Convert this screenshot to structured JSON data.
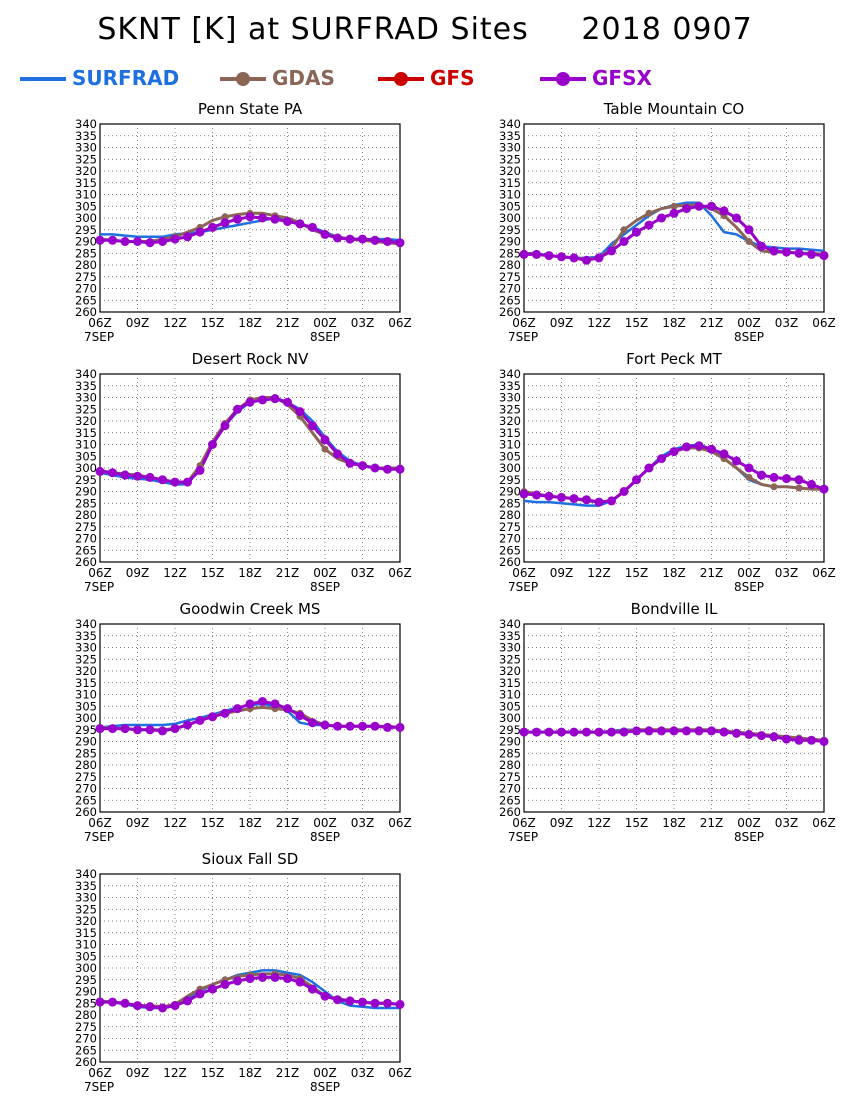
{
  "title": "SKNT [K] at SURFRAD Sites     2018 0907",
  "legend": [
    {
      "name": "SURFRAD",
      "color": "#1e6fe0",
      "marker": "none"
    },
    {
      "name": "GDAS",
      "color": "#8b6556",
      "marker": "circle"
    },
    {
      "name": "GFS",
      "color": "#cc0000",
      "marker": "circle"
    },
    {
      "name": "GFSX",
      "color": "#9900cc",
      "marker": "circle"
    }
  ],
  "chart_data": [
    {
      "type": "line",
      "title": "Penn State PA",
      "x": [
        0,
        1,
        2,
        3,
        4,
        5,
        6,
        7,
        8,
        9,
        10,
        11,
        12,
        13,
        14,
        15,
        16,
        17,
        18,
        19,
        20,
        21,
        22,
        23,
        24
      ],
      "xtick_labels": [
        "06Z",
        "09Z",
        "12Z",
        "15Z",
        "18Z",
        "21Z",
        "00Z",
        "03Z",
        "06Z"
      ],
      "xdate_labels": [
        "7SEP",
        "8SEP"
      ],
      "ylim": [
        260,
        340
      ],
      "yticks": [
        260,
        265,
        270,
        275,
        280,
        285,
        290,
        295,
        300,
        305,
        310,
        315,
        320,
        325,
        330,
        335,
        340
      ],
      "series": [
        {
          "name": "SURFRAD",
          "values": [
            293,
            293,
            292.5,
            292,
            292,
            292,
            293,
            293.5,
            294,
            295,
            296,
            297,
            298,
            299,
            300,
            299,
            297,
            296,
            294,
            292,
            291,
            291,
            291,
            291,
            290.5
          ]
        },
        {
          "name": "GDAS",
          "values": [
            291,
            290.5,
            290,
            290,
            290,
            291,
            292,
            294,
            296,
            299,
            300.5,
            301.5,
            302,
            302,
            301,
            300,
            298,
            295,
            293,
            292,
            291,
            290.5,
            290,
            289.5,
            289
          ]
        },
        {
          "name": "GFSX",
          "values": [
            290.5,
            290.5,
            290,
            290,
            289.5,
            290,
            291,
            292,
            294,
            296,
            298,
            299.5,
            300.5,
            300,
            299.5,
            298.5,
            297.5,
            296,
            293,
            291.5,
            291,
            291,
            290.5,
            290,
            289.5
          ]
        }
      ]
    },
    {
      "type": "line",
      "title": "Table Mountain CO",
      "x": [
        0,
        1,
        2,
        3,
        4,
        5,
        6,
        7,
        8,
        9,
        10,
        11,
        12,
        13,
        14,
        15,
        16,
        17,
        18,
        19,
        20,
        21,
        22,
        23,
        24
      ],
      "xtick_labels": [
        "06Z",
        "09Z",
        "12Z",
        "15Z",
        "18Z",
        "21Z",
        "00Z",
        "03Z",
        "06Z"
      ],
      "xdate_labels": [
        "7SEP",
        "8SEP"
      ],
      "ylim": [
        260,
        340
      ],
      "yticks": [
        260,
        265,
        270,
        275,
        280,
        285,
        290,
        295,
        300,
        305,
        310,
        315,
        320,
        325,
        330,
        335,
        340
      ],
      "series": [
        {
          "name": "SURFRAD",
          "values": [
            285,
            285,
            284,
            283.5,
            283,
            283,
            283.5,
            289,
            293,
            297,
            301,
            304,
            305.5,
            306.5,
            306.5,
            301,
            294,
            293,
            290,
            288,
            287.5,
            287,
            287,
            286.5,
            286
          ]
        },
        {
          "name": "GDAS",
          "values": [
            285,
            284.5,
            284,
            283.5,
            283,
            282.5,
            283,
            287,
            295,
            299,
            302,
            304,
            305,
            305.5,
            305.5,
            304,
            301,
            296,
            290,
            286,
            285.5,
            285.5,
            285,
            285,
            284.5
          ]
        },
        {
          "name": "GFSX",
          "values": [
            284.5,
            284.5,
            284,
            283.5,
            283,
            282,
            283,
            286,
            290,
            294,
            297,
            300,
            302,
            304,
            305,
            305,
            303,
            300,
            295,
            288,
            286,
            285.5,
            285,
            284.5,
            284
          ]
        }
      ]
    },
    {
      "type": "line",
      "title": "Desert Rock NV",
      "x": [
        0,
        1,
        2,
        3,
        4,
        5,
        6,
        7,
        8,
        9,
        10,
        11,
        12,
        13,
        14,
        15,
        16,
        17,
        18,
        19,
        20,
        21,
        22,
        23,
        24
      ],
      "xtick_labels": [
        "06Z",
        "09Z",
        "12Z",
        "15Z",
        "18Z",
        "21Z",
        "00Z",
        "03Z",
        "06Z"
      ],
      "xdate_labels": [
        "7SEP",
        "8SEP"
      ],
      "ylim": [
        260,
        340
      ],
      "yticks": [
        260,
        265,
        270,
        275,
        280,
        285,
        290,
        295,
        300,
        305,
        310,
        315,
        320,
        325,
        330,
        335,
        340
      ],
      "series": [
        {
          "name": "SURFRAD",
          "values": [
            298,
            297,
            296,
            295.5,
            295,
            294,
            293,
            293,
            300,
            310,
            318,
            324,
            328,
            330,
            330,
            328,
            325,
            320,
            313,
            307,
            303,
            301,
            300,
            300,
            300
          ]
        },
        {
          "name": "GDAS",
          "values": [
            299,
            298,
            297.5,
            297,
            296,
            295,
            294,
            294,
            301,
            311,
            319,
            325,
            329,
            330,
            330,
            327,
            322,
            315,
            308,
            304,
            302,
            301,
            300,
            300,
            300
          ]
        },
        {
          "name": "GFSX",
          "values": [
            298.5,
            298,
            297,
            296.5,
            296,
            295,
            294,
            294,
            299,
            310,
            318,
            325,
            328,
            329,
            329.5,
            328,
            324,
            318,
            312,
            306,
            302,
            301,
            300,
            299.5,
            299.5
          ]
        }
      ]
    },
    {
      "type": "line",
      "title": "Fort Peck MT",
      "x": [
        0,
        1,
        2,
        3,
        4,
        5,
        6,
        7,
        8,
        9,
        10,
        11,
        12,
        13,
        14,
        15,
        16,
        17,
        18,
        19,
        20,
        21,
        22,
        23,
        24
      ],
      "xtick_labels": [
        "06Z",
        "09Z",
        "12Z",
        "15Z",
        "18Z",
        "21Z",
        "00Z",
        "03Z",
        "06Z"
      ],
      "xdate_labels": [
        "7SEP",
        "8SEP"
      ],
      "ylim": [
        260,
        340
      ],
      "yticks": [
        260,
        265,
        270,
        275,
        280,
        285,
        290,
        295,
        300,
        305,
        310,
        315,
        320,
        325,
        330,
        335,
        340
      ],
      "series": [
        {
          "name": "SURFRAD",
          "values": [
            286,
            285.5,
            285.5,
            285,
            284.5,
            284,
            284,
            286,
            290,
            295,
            300,
            305,
            308,
            309.5,
            310,
            308,
            304,
            300,
            295,
            293,
            292,
            292,
            291.5,
            291,
            291
          ]
        },
        {
          "name": "GDAS",
          "values": [
            290,
            289,
            288,
            287.5,
            287,
            286,
            285.5,
            286,
            290,
            295,
            300,
            304,
            307,
            308.5,
            308.5,
            307,
            304,
            300,
            296,
            293,
            292,
            292,
            291.5,
            291,
            291
          ]
        },
        {
          "name": "GFSX",
          "values": [
            289,
            288.5,
            288,
            287.5,
            287,
            286.5,
            285.5,
            286,
            290,
            295,
            300,
            304,
            307,
            309,
            309.5,
            308,
            306,
            303,
            300,
            297,
            296,
            295.5,
            295,
            293,
            291
          ]
        }
      ]
    },
    {
      "type": "line",
      "title": "Goodwin Creek MS",
      "x": [
        0,
        1,
        2,
        3,
        4,
        5,
        6,
        7,
        8,
        9,
        10,
        11,
        12,
        13,
        14,
        15,
        16,
        17,
        18,
        19,
        20,
        21,
        22,
        23,
        24
      ],
      "xtick_labels": [
        "06Z",
        "09Z",
        "12Z",
        "15Z",
        "18Z",
        "21Z",
        "00Z",
        "03Z",
        "06Z"
      ],
      "xdate_labels": [
        "7SEP",
        "8SEP"
      ],
      "ylim": [
        260,
        340
      ],
      "yticks": [
        260,
        265,
        270,
        275,
        280,
        285,
        290,
        295,
        300,
        305,
        310,
        315,
        320,
        325,
        330,
        335,
        340
      ],
      "series": [
        {
          "name": "SURFRAD",
          "values": [
            296,
            296.5,
            297,
            297,
            297,
            297,
            297.5,
            299,
            300,
            301.5,
            303,
            304.5,
            305.5,
            306,
            305,
            303,
            298,
            297,
            297,
            296.5,
            296.5,
            296.5,
            296.5,
            296.5,
            296
          ]
        },
        {
          "name": "GDAS",
          "values": [
            296,
            295.5,
            295.5,
            295,
            295,
            295,
            295.5,
            297,
            299,
            301,
            302,
            303,
            304,
            304.5,
            304,
            303.5,
            302,
            299,
            297,
            296.5,
            296.5,
            296.5,
            296.5,
            296.5,
            296
          ]
        },
        {
          "name": "GFSX",
          "values": [
            295.5,
            295.5,
            295.5,
            295,
            295,
            294.5,
            295.5,
            297,
            299,
            300.5,
            302,
            304,
            306,
            307,
            306,
            304,
            301,
            298,
            297,
            296.5,
            296.5,
            296.5,
            296.5,
            296,
            296
          ]
        }
      ]
    },
    {
      "type": "line",
      "title": "Bondville IL",
      "x": [
        0,
        1,
        2,
        3,
        4,
        5,
        6,
        7,
        8,
        9,
        10,
        11,
        12,
        13,
        14,
        15,
        16,
        17,
        18,
        19,
        20,
        21,
        22,
        23,
        24
      ],
      "xtick_labels": [
        "06Z",
        "09Z",
        "12Z",
        "15Z",
        "18Z",
        "21Z",
        "00Z",
        "03Z",
        "06Z"
      ],
      "xdate_labels": [
        "7SEP",
        "8SEP"
      ],
      "ylim": [
        260,
        340
      ],
      "yticks": [
        260,
        265,
        270,
        275,
        280,
        285,
        290,
        295,
        300,
        305,
        310,
        315,
        320,
        325,
        330,
        335,
        340
      ],
      "series": [
        {
          "name": "SURFRAD",
          "values": [
            294,
            294,
            294,
            294,
            294,
            294,
            294,
            294.5,
            295,
            295,
            295,
            295,
            295,
            294.5,
            294.5,
            294.5,
            294,
            294,
            293.5,
            293,
            292.5,
            292,
            291.5,
            291,
            290.5
          ]
        },
        {
          "name": "GDAS",
          "values": [
            294,
            294,
            294,
            294,
            294,
            294,
            294,
            294,
            294.5,
            295,
            295,
            295,
            295,
            295,
            295,
            295,
            294.5,
            294,
            293.5,
            293,
            292.5,
            292,
            291.5,
            291,
            290.5
          ]
        },
        {
          "name": "GFSX",
          "values": [
            294,
            294,
            294,
            294,
            294,
            294,
            294,
            294,
            294,
            294.5,
            294.5,
            294.5,
            294.5,
            294.5,
            294.5,
            294.5,
            294,
            293.5,
            293,
            292.5,
            292,
            291,
            290.5,
            290.5,
            290
          ]
        }
      ]
    },
    {
      "type": "line",
      "title": "Sioux Fall SD",
      "x": [
        0,
        1,
        2,
        3,
        4,
        5,
        6,
        7,
        8,
        9,
        10,
        11,
        12,
        13,
        14,
        15,
        16,
        17,
        18,
        19,
        20,
        21,
        22,
        23,
        24
      ],
      "xtick_labels": [
        "06Z",
        "09Z",
        "12Z",
        "15Z",
        "18Z",
        "21Z",
        "00Z",
        "03Z",
        "06Z"
      ],
      "xdate_labels": [
        "7SEP",
        "8SEP"
      ],
      "ylim": [
        260,
        340
      ],
      "yticks": [
        260,
        265,
        270,
        275,
        280,
        285,
        290,
        295,
        300,
        305,
        310,
        315,
        320,
        325,
        330,
        335,
        340
      ],
      "series": [
        {
          "name": "SURFRAD",
          "values": [
            286,
            285.5,
            284.5,
            283.5,
            283,
            283,
            284,
            287,
            290,
            293,
            295,
            297,
            298,
            299,
            299,
            298,
            297,
            294,
            290,
            286,
            284,
            283.5,
            283,
            283,
            283
          ]
        },
        {
          "name": "GDAS",
          "values": [
            286,
            285.5,
            285,
            284,
            284,
            283.5,
            284.5,
            288,
            291,
            293,
            295,
            296.5,
            297,
            297.5,
            297.5,
            297,
            295.5,
            292,
            288,
            287,
            286,
            285.5,
            285,
            285,
            284.5
          ]
        },
        {
          "name": "GFSX",
          "values": [
            285.5,
            285.5,
            285,
            284,
            283.5,
            283,
            284,
            286,
            289,
            291,
            293,
            294.5,
            295.5,
            296,
            296,
            295.5,
            294,
            291,
            288,
            286.5,
            286,
            285.5,
            285,
            285,
            284.5
          ]
        }
      ]
    }
  ]
}
